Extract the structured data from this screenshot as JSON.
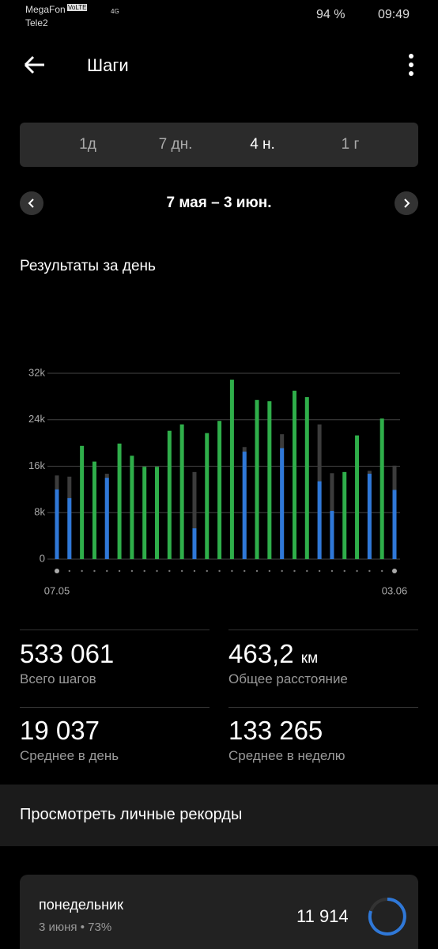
{
  "status_bar": {
    "carrier1": "MegaFon",
    "volte": "VoLTE",
    "carrier2": "Tele2",
    "network": "4G",
    "battery": "94 %",
    "time": "09:49"
  },
  "header": {
    "title": "Шаги"
  },
  "tabs": [
    "1д",
    "7 дн.",
    "4 н.",
    "1 г"
  ],
  "date_range": "7 мая – 3 июн.",
  "chart_data": {
    "type": "bar",
    "title": "Результаты за день",
    "categories": [
      "07.05",
      null,
      null,
      null,
      null,
      null,
      null,
      null,
      null,
      null,
      null,
      null,
      null,
      null,
      null,
      null,
      null,
      null,
      null,
      null,
      null,
      null,
      null,
      null,
      null,
      null,
      null,
      "03.06"
    ],
    "series": [
      {
        "color": "#3c3c3c",
        "values": [
          14400,
          14200,
          null,
          null,
          14700,
          null,
          null,
          null,
          null,
          null,
          null,
          15000,
          null,
          null,
          null,
          19300,
          null,
          null,
          21500,
          null,
          null,
          23200,
          14800,
          null,
          null,
          15200,
          null,
          16100
        ]
      },
      {
        "color": "#2fae4a",
        "alt_color": "#2f78d8",
        "values": [
          12000,
          10500,
          19500,
          16800,
          14000,
          19900,
          17800,
          15900,
          15900,
          22100,
          23200,
          5300,
          21700,
          23800,
          30900,
          18500,
          27400,
          27200,
          19100,
          29000,
          27900,
          13400,
          8300,
          15000,
          21300,
          14700,
          24200,
          11914
        ]
      }
    ],
    "ylim": [
      0,
      32000
    ],
    "yticks": [
      0,
      {
        "value": 8000,
        "label": "8k"
      },
      {
        "value": 16000,
        "label": "16k"
      },
      {
        "value": 24000,
        "label": "24k"
      },
      {
        "value": 32000,
        "label": "32k"
      }
    ],
    "grid": true
  },
  "stats": [
    {
      "value": "533 061",
      "label": "Всего шагов"
    },
    {
      "value": "463,2",
      "unit": "км",
      "label": "Общее расстояние"
    },
    {
      "value": "19 037",
      "label": "Среднее в день"
    },
    {
      "value": "133 265",
      "label": "Среднее в неделю"
    }
  ],
  "records_link": "Просмотреть личные рекорды",
  "day_card": {
    "day": "понедельник",
    "subtitle": "3 июня • 73%",
    "steps": "11 914"
  }
}
